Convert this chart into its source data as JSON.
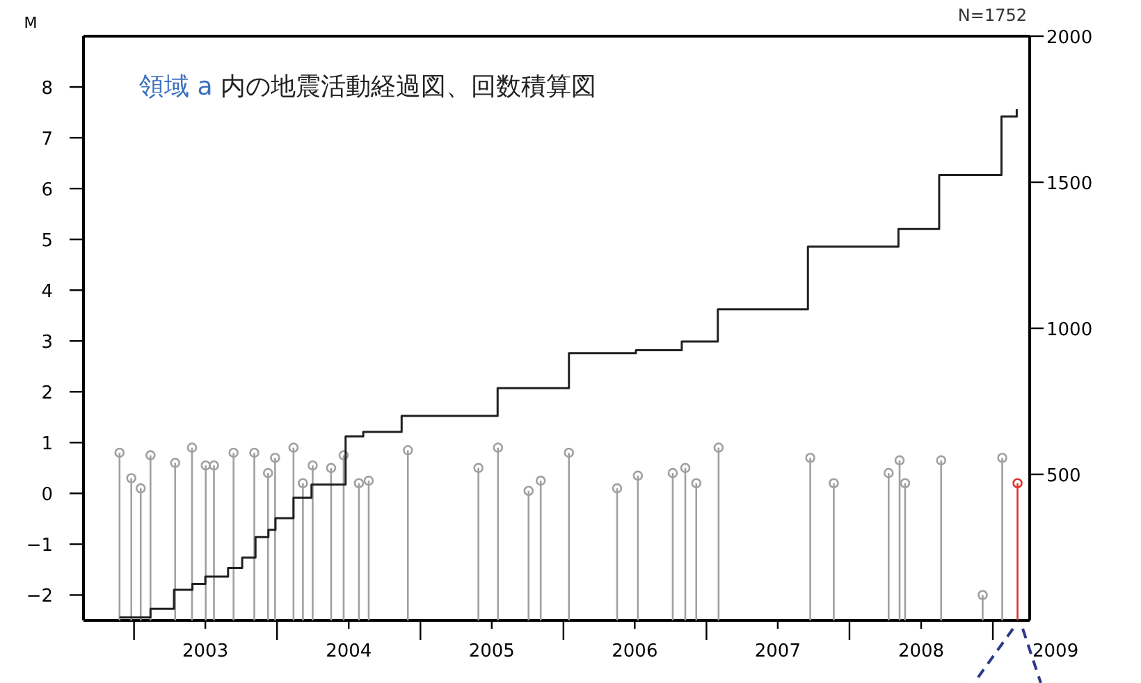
{
  "chart_data": {
    "type": "scatter",
    "title": "領域 a 内の地震活動経過図、回数積算図",
    "ylabel": "M",
    "xlim": [
      "2002-08-25",
      "2009-04-05"
    ],
    "xticks": [
      {
        "value": "2003-01-01",
        "label": null
      },
      {
        "value": "2003-07-02",
        "label": "2003"
      },
      {
        "value": "2004-01-01",
        "label": null
      },
      {
        "value": "2004-07-02",
        "label": "2004"
      },
      {
        "value": "2005-01-01",
        "label": null
      },
      {
        "value": "2005-07-02",
        "label": "2005"
      },
      {
        "value": "2006-01-01",
        "label": null
      },
      {
        "value": "2006-07-02",
        "label": "2006"
      },
      {
        "value": "2007-01-01",
        "label": null
      },
      {
        "value": "2007-07-02",
        "label": "2007"
      },
      {
        "value": "2008-01-01",
        "label": null
      },
      {
        "value": "2008-07-02",
        "label": "2008"
      },
      {
        "value": "2009-01-01",
        "label": null
      }
    ],
    "ylim": [
      -2.5,
      9
    ],
    "yticks": [
      -2,
      -1,
      0,
      1,
      2,
      3,
      4,
      5,
      6,
      7,
      8
    ],
    "y2lim": [
      0,
      2000
    ],
    "y2ticks": [
      500,
      1000,
      1500,
      2000
    ],
    "marker": "circle",
    "grid": false,
    "annotations": [
      "N=1752",
      "2009"
    ],
    "series": [
      {
        "axis": "y",
        "color": "#a0a0a0",
        "x": [
          "2002-11-25",
          "2002-12-25",
          "2003-01-18",
          "2003-02-12",
          "2003-04-16",
          "2003-05-29",
          "2003-07-03",
          "2003-07-24",
          "2003-09-12",
          "2003-11-04",
          "2003-12-09",
          "2003-12-27",
          "2004-02-12",
          "2004-03-07",
          "2004-04-01",
          "2004-05-18",
          "2004-06-19",
          "2004-07-28",
          "2004-08-22",
          "2004-11-30",
          "2005-05-29",
          "2005-07-18",
          "2005-10-04",
          "2005-11-04",
          "2006-01-15",
          "2006-05-18",
          "2006-07-10",
          "2006-10-07",
          "2006-11-08",
          "2006-12-06",
          "2007-02-01",
          "2007-09-23",
          "2007-11-22",
          "2008-04-10",
          "2008-05-08",
          "2008-05-22",
          "2008-08-22",
          "2008-12-06",
          "2009-01-25"
        ],
        "values": [
          0.8,
          0.3,
          0.1,
          0.75,
          0.6,
          0.9,
          0.55,
          0.55,
          0.8,
          0.8,
          0.4,
          0.7,
          0.9,
          0.2,
          0.55,
          0.5,
          0.75,
          0.2,
          0.25,
          0.85,
          0.5,
          0.9,
          0.05,
          0.25,
          0.8,
          0.1,
          0.35,
          0.4,
          0.5,
          0.2,
          0.9,
          0.7,
          0.2,
          0.4,
          0.65,
          0.2,
          0.65,
          -2.0,
          0.7
        ],
        "errors": [
          [
            -2.5,
            0.8
          ],
          [
            -2.5,
            0.3
          ],
          [
            -2.5,
            0.1
          ],
          [
            -2.5,
            0.75
          ],
          [
            -2.5,
            0.6
          ],
          [
            -2.5,
            0.9
          ],
          [
            -2.5,
            0.55
          ],
          [
            -2.5,
            0.55
          ],
          [
            -2.5,
            0.8
          ],
          [
            -2.5,
            0.8
          ],
          [
            -2.5,
            0.4
          ],
          [
            -2.5,
            0.7
          ],
          [
            -2.5,
            0.9
          ],
          [
            -2.5,
            0.2
          ],
          [
            -2.5,
            0.55
          ],
          [
            -2.5,
            0.5
          ],
          [
            -2.5,
            0.75
          ],
          [
            -2.5,
            0.2
          ],
          [
            -2.5,
            0.25
          ],
          [
            -2.5,
            0.85
          ],
          [
            -2.5,
            0.5
          ],
          [
            -2.5,
            0.9
          ],
          [
            -2.5,
            0.05
          ],
          [
            -2.5,
            0.25
          ],
          [
            -2.5,
            0.8
          ],
          [
            -2.5,
            0.1
          ],
          [
            -2.5,
            0.35
          ],
          [
            -2.5,
            0.4
          ],
          [
            -2.5,
            0.5
          ],
          [
            -2.5,
            0.2
          ],
          [
            -2.5,
            0.9
          ],
          [
            -2.5,
            0.7
          ],
          [
            -2.5,
            0.2
          ],
          [
            -2.5,
            0.4
          ],
          [
            -2.5,
            0.65
          ],
          [
            -2.5,
            0.2
          ],
          [
            -2.5,
            0.65
          ],
          [
            -2.5,
            -2.0
          ],
          [
            -2.5,
            0.7
          ]
        ]
      },
      {
        "axis": "y",
        "color": "#e03030",
        "x": [
          "2009-03-05"
        ],
        "values": [
          0.2
        ],
        "errors": [
          [
            -2.5,
            0.2
          ]
        ]
      },
      {
        "type": "step",
        "axis": "y2",
        "color": "#202020",
        "marker": "none",
        "x": [
          "2002-11-25",
          "2003-02-12",
          "2003-04-13",
          "2003-05-30",
          "2003-07-02",
          "2003-08-29",
          "2003-10-04",
          "2003-11-07",
          "2003-12-10",
          "2003-12-28",
          "2004-02-12",
          "2004-03-29",
          "2004-06-24",
          "2004-08-08",
          "2004-11-14",
          "2005-07-17",
          "2006-01-15",
          "2006-07-05",
          "2006-10-30",
          "2007-01-30",
          "2007-09-17",
          "2008-05-05",
          "2008-08-17",
          "2009-01-23",
          "2009-03-03"
        ],
        "values": [
          10,
          40,
          105,
          125,
          150,
          180,
          215,
          285,
          310,
          350,
          420,
          465,
          630,
          645,
          700,
          795,
          915,
          925,
          955,
          1065,
          1280,
          1340,
          1525,
          1725,
          1750
        ]
      }
    ]
  }
}
